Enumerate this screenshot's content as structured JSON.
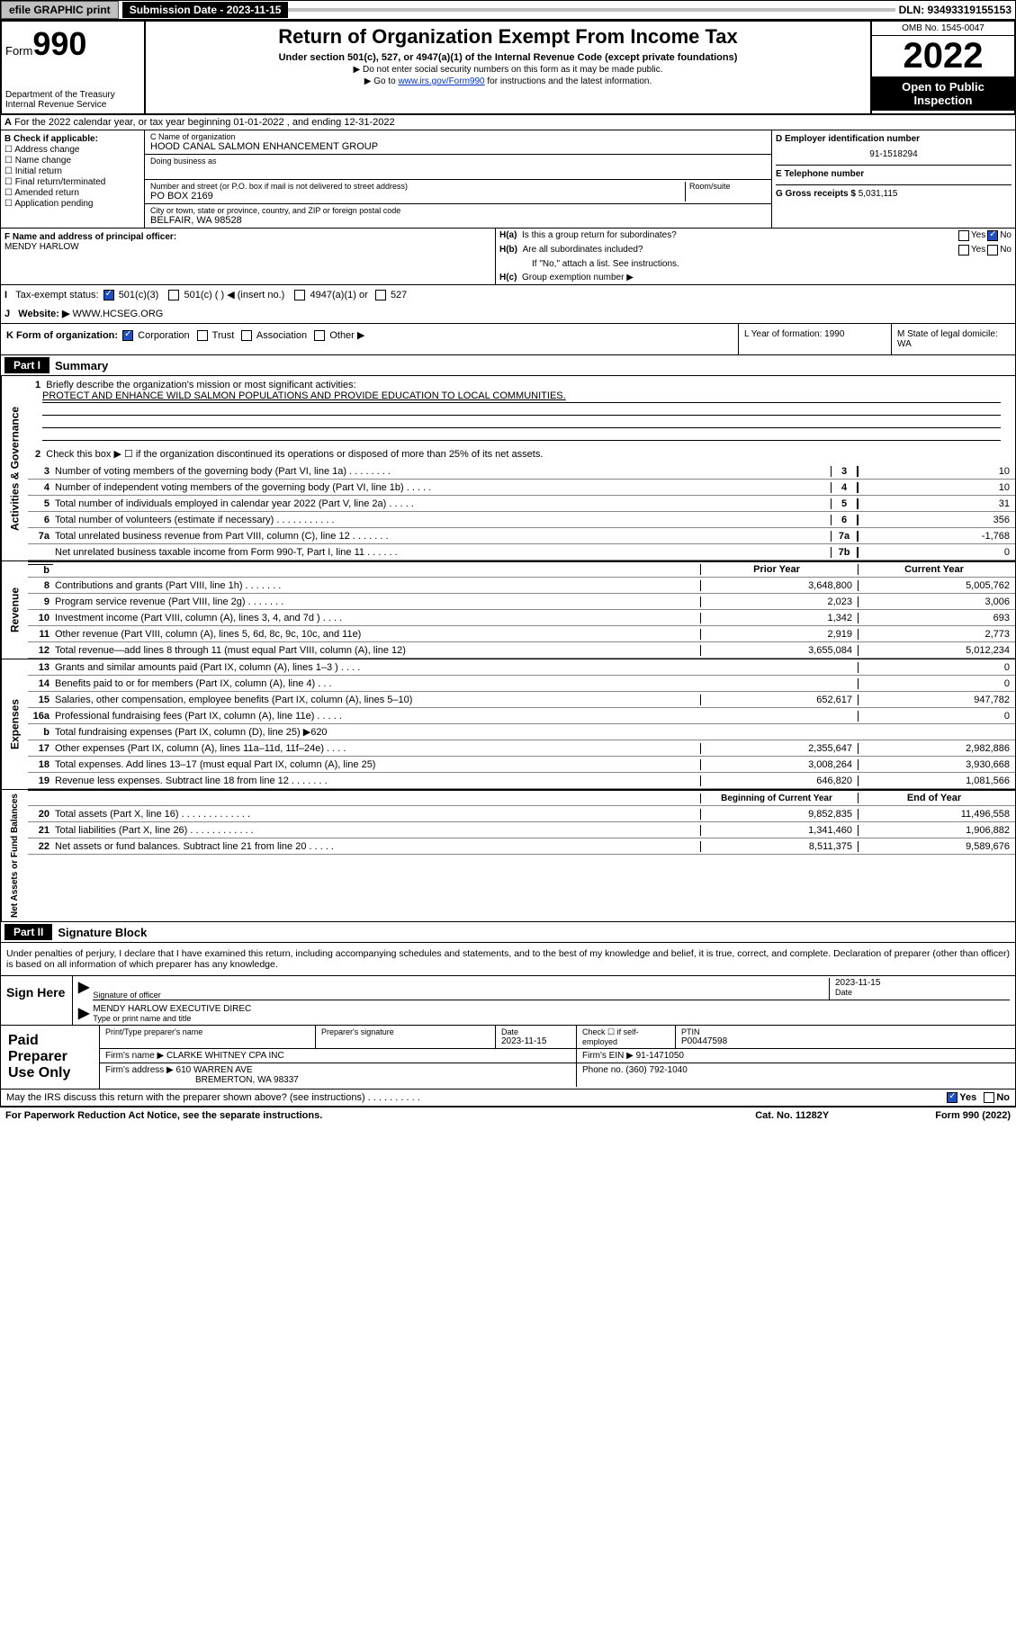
{
  "topbar": {
    "efile": "efile GRAPHIC print",
    "sub_date_label": "Submission Date - 2023-11-15",
    "dln": "DLN: 93493319155153"
  },
  "header": {
    "form_label": "Form",
    "form_num": "990",
    "dept": "Department of the Treasury",
    "irs": "Internal Revenue Service",
    "title": "Return of Organization Exempt From Income Tax",
    "sub1": "Under section 501(c), 527, or 4947(a)(1) of the Internal Revenue Code (except private foundations)",
    "sub2": "▶ Do not enter social security numbers on this form as it may be made public.",
    "sub3_pre": "▶ Go to ",
    "sub3_link": "www.irs.gov/Form990",
    "sub3_post": " for instructions and the latest information.",
    "omb": "OMB No. 1545-0047",
    "year": "2022",
    "open": "Open to Public Inspection"
  },
  "section_a": "For the 2022 calendar year, or tax year beginning 01-01-2022   , and ending 12-31-2022",
  "col_b": {
    "label": "B Check if applicable:",
    "opts": [
      "Address change",
      "Name change",
      "Initial return",
      "Final return/terminated",
      "Amended return",
      "Application pending"
    ]
  },
  "col_c": {
    "name_label": "C Name of organization",
    "name": "HOOD CANAL SALMON ENHANCEMENT GROUP",
    "dba_label": "Doing business as",
    "addr_label": "Number and street (or P.O. box if mail is not delivered to street address)",
    "room_label": "Room/suite",
    "addr": "PO BOX 2169",
    "city_label": "City or town, state or province, country, and ZIP or foreign postal code",
    "city": "BELFAIR, WA  98528"
  },
  "col_d": {
    "d_label": "D Employer identification number",
    "ein": "91-1518294",
    "e_label": "E Telephone number",
    "g_label": "G Gross receipts $",
    "g_val": "5,031,115"
  },
  "fg": {
    "f_label": "F Name and address of principal officer:",
    "f_name": "MENDY HARLOW",
    "ha": "Is this a group return for subordinates?",
    "hb": "Are all subordinates included?",
    "hb_note": "If \"No,\" attach a list. See instructions.",
    "hc": "Group exemption number ▶",
    "yes": "Yes",
    "no": "No"
  },
  "tax_exempt": {
    "label": "Tax-exempt status:",
    "opt1": "501(c)(3)",
    "opt2": "501(c) (  ) ◀ (insert no.)",
    "opt3": "4947(a)(1) or",
    "opt4": "527"
  },
  "website": {
    "label": "Website: ▶",
    "val": "WWW.HCSEG.ORG"
  },
  "row_k": {
    "k": "K Form of organization:",
    "k_opts": [
      "Corporation",
      "Trust",
      "Association",
      "Other ▶"
    ],
    "l": "L Year of formation: 1990",
    "m": "M State of legal domicile: WA"
  },
  "part1": {
    "hdr": "Part I",
    "title": "Summary",
    "line1": "Briefly describe the organization's mission or most significant activities:",
    "mission": "PROTECT AND ENHANCE WILD SALMON POPULATIONS AND PROVIDE EDUCATION TO LOCAL COMMUNITIES.",
    "line2": "Check this box ▶ ☐  if the organization discontinued its operations or disposed of more than 25% of its net assets."
  },
  "side_labels": {
    "gov": "Activities & Governance",
    "rev": "Revenue",
    "exp": "Expenses",
    "net": "Net Assets or Fund Balances"
  },
  "gov_rows": [
    {
      "n": "3",
      "d": "Number of voting members of the governing body (Part VI, line 1a)   .   .   .   .   .   .   .   .",
      "b": "3",
      "v": "10"
    },
    {
      "n": "4",
      "d": "Number of independent voting members of the governing body (Part VI, line 1b)   .   .   .   .   .",
      "b": "4",
      "v": "10"
    },
    {
      "n": "5",
      "d": "Total number of individuals employed in calendar year 2022 (Part V, line 2a)   .   .   .   .   .",
      "b": "5",
      "v": "31"
    },
    {
      "n": "6",
      "d": "Total number of volunteers (estimate if necessary)   .   .   .   .   .   .   .   .   .   .   .",
      "b": "6",
      "v": "356"
    },
    {
      "n": "7a",
      "d": "Total unrelated business revenue from Part VIII, column (C), line 12   .   .   .   .   .   .   .",
      "b": "7a",
      "v": "-1,768"
    },
    {
      "n": "",
      "d": "Net unrelated business taxable income from Form 990-T, Part I, line 11   .   .   .   .   .   .",
      "b": "7b",
      "v": "0"
    }
  ],
  "col_hdr": {
    "prior": "Prior Year",
    "curr": "Current Year"
  },
  "rev_rows": [
    {
      "n": "8",
      "d": "Contributions and grants (Part VIII, line 1h)   .   .   .   .   .   .   .",
      "p": "3,648,800",
      "c": "5,005,762"
    },
    {
      "n": "9",
      "d": "Program service revenue (Part VIII, line 2g)   .   .   .   .   .   .   .",
      "p": "2,023",
      "c": "3,006"
    },
    {
      "n": "10",
      "d": "Investment income (Part VIII, column (A), lines 3, 4, and 7d )   .   .   .   .",
      "p": "1,342",
      "c": "693"
    },
    {
      "n": "11",
      "d": "Other revenue (Part VIII, column (A), lines 5, 6d, 8c, 9c, 10c, and 11e)",
      "p": "2,919",
      "c": "2,773"
    },
    {
      "n": "12",
      "d": "Total revenue—add lines 8 through 11 (must equal Part VIII, column (A), line 12)",
      "p": "3,655,084",
      "c": "5,012,234"
    }
  ],
  "exp_rows": [
    {
      "n": "13",
      "d": "Grants and similar amounts paid (Part IX, column (A), lines 1–3 )   .   .   .   .",
      "p": "",
      "c": "0"
    },
    {
      "n": "14",
      "d": "Benefits paid to or for members (Part IX, column (A), line 4)   .   .   .",
      "p": "",
      "c": "0"
    },
    {
      "n": "15",
      "d": "Salaries, other compensation, employee benefits (Part IX, column (A), lines 5–10)",
      "p": "652,617",
      "c": "947,782"
    },
    {
      "n": "16a",
      "d": "Professional fundraising fees (Part IX, column (A), line 11e)   .   .   .   .   .",
      "p": "",
      "c": "0"
    },
    {
      "n": "b",
      "d": "Total fundraising expenses (Part IX, column (D), line 25) ▶620",
      "p": "gray",
      "c": "gray"
    },
    {
      "n": "17",
      "d": "Other expenses (Part IX, column (A), lines 11a–11d, 11f–24e)   .   .   .   .",
      "p": "2,355,647",
      "c": "2,982,886"
    },
    {
      "n": "18",
      "d": "Total expenses. Add lines 13–17 (must equal Part IX, column (A), line 25)",
      "p": "3,008,264",
      "c": "3,930,668"
    },
    {
      "n": "19",
      "d": "Revenue less expenses. Subtract line 18 from line 12   .   .   .   .   .   .   .",
      "p": "646,820",
      "c": "1,081,566"
    }
  ],
  "net_hdr": {
    "beg": "Beginning of Current Year",
    "end": "End of Year"
  },
  "net_rows": [
    {
      "n": "20",
      "d": "Total assets (Part X, line 16)   .   .   .   .   .   .   .   .   .   .   .   .   .",
      "p": "9,852,835",
      "c": "11,496,558"
    },
    {
      "n": "21",
      "d": "Total liabilities (Part X, line 26)   .   .   .   .   .   .   .   .   .   .   .   .",
      "p": "1,341,460",
      "c": "1,906,882"
    },
    {
      "n": "22",
      "d": "Net assets or fund balances. Subtract line 21 from line 20   .   .   .   .   .",
      "p": "8,511,375",
      "c": "9,589,676"
    }
  ],
  "part2": {
    "hdr": "Part II",
    "title": "Signature Block",
    "decl": "Under penalties of perjury, I declare that I have examined this return, including accompanying schedules and statements, and to the best of my knowledge and belief, it is true, correct, and complete. Declaration of preparer (other than officer) is based on all information of which preparer has any knowledge."
  },
  "sign": {
    "here": "Sign Here",
    "sig_officer": "Signature of officer",
    "date": "Date",
    "date_val": "2023-11-15",
    "name": "MENDY HARLOW  EXECUTIVE DIREC",
    "name_label": "Type or print name and title"
  },
  "paid": {
    "label": "Paid Preparer Use Only",
    "h1": "Print/Type preparer's name",
    "h2": "Preparer's signature",
    "h3": "Date",
    "h3v": "2023-11-15",
    "h4": "Check ☐ if self-employed",
    "h5": "PTIN",
    "h5v": "P00447598",
    "firm_name_l": "Firm's name    ▶",
    "firm_name": "CLARKE WHITNEY CPA INC",
    "firm_ein_l": "Firm's EIN ▶",
    "firm_ein": "91-1471050",
    "firm_addr_l": "Firm's address ▶",
    "firm_addr": "610 WARREN AVE",
    "firm_city": "BREMERTON, WA  98337",
    "phone_l": "Phone no.",
    "phone": "(360) 792-1040"
  },
  "footer": {
    "q": "May the IRS discuss this return with the preparer shown above? (see instructions)   .   .   .   .   .   .   .   .   .   .",
    "yes": "Yes",
    "no": "No",
    "paperwork": "For Paperwork Reduction Act Notice, see the separate instructions.",
    "cat": "Cat. No. 11282Y",
    "form": "Form 990 (2022)"
  }
}
